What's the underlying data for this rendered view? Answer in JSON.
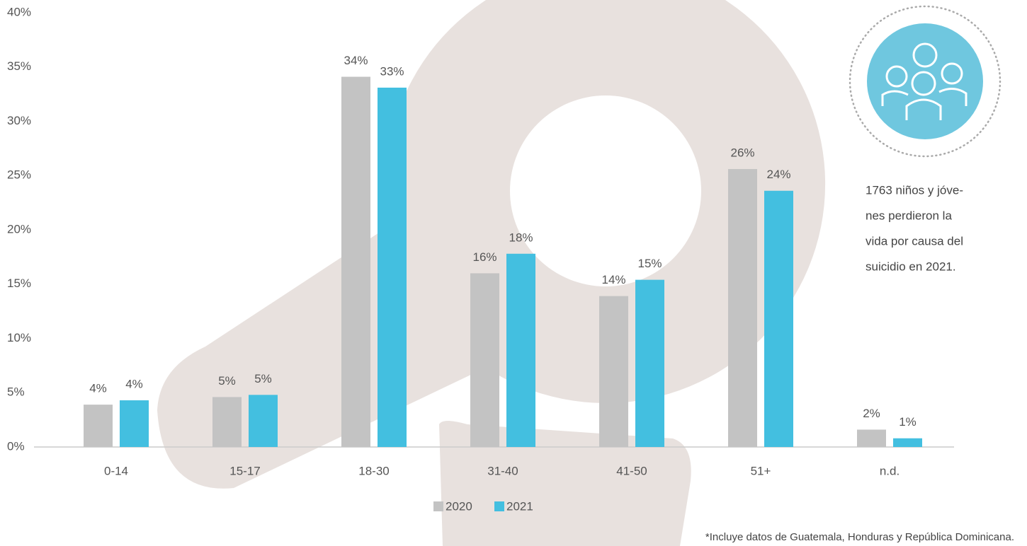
{
  "chart_data": {
    "type": "bar",
    "categories": [
      "0-14",
      "15-17",
      "18-30",
      "31-40",
      "41-50",
      "51+",
      "n.d."
    ],
    "series": [
      {
        "name": "2020",
        "color": "#c3c3c3",
        "values": [
          3.9,
          4.6,
          34.1,
          16.0,
          13.9,
          25.6,
          1.6
        ],
        "value_labels": [
          "4%",
          "5%",
          "34%",
          "16%",
          "14%",
          "26%",
          "2%"
        ]
      },
      {
        "name": "2021",
        "color": "#43bfe0",
        "values": [
          4.3,
          4.8,
          33.1,
          17.8,
          15.4,
          23.6,
          0.8
        ],
        "value_labels": [
          "4%",
          "5%",
          "33%",
          "18%",
          "15%",
          "24%",
          "1%"
        ]
      }
    ],
    "ylim": [
      0,
      40
    ],
    "yticks": [
      {
        "value": 0,
        "label": "0%"
      },
      {
        "value": 5,
        "label": "5%"
      },
      {
        "value": 10,
        "label": "10%"
      },
      {
        "value": 15,
        "label": "15%"
      },
      {
        "value": 20,
        "label": "20%"
      },
      {
        "value": 25,
        "label": "25%"
      },
      {
        "value": 30,
        "label": "30%"
      },
      {
        "value": 35,
        "label": "35%"
      },
      {
        "value": 40,
        "label": "40%"
      }
    ],
    "grid": false,
    "legend": "bottom",
    "annotation": [
      "1763 niños y jóve-",
      "nes perdieron la",
      "vida por causa del",
      "suicidio en 2021."
    ],
    "footnote": "*Incluye datos de Guatemala, Honduras y República Dominicana."
  }
}
